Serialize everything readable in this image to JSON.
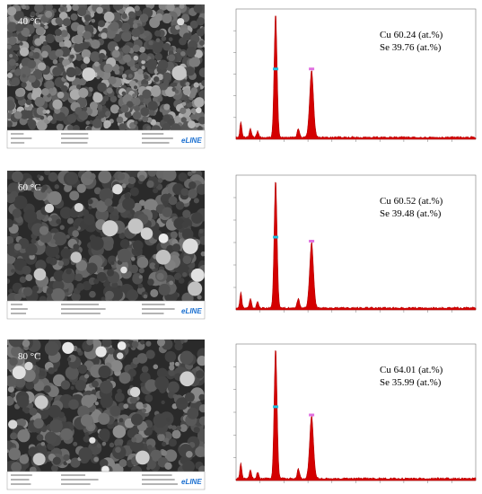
{
  "panels": [
    {
      "label": "40 °C",
      "cu": "Cu 60.24 (at.%)",
      "se": "Se 39.76 (at.%)",
      "logo": "eLINE"
    },
    {
      "label": "60 °C",
      "cu": "Cu 60.52 (at.%)",
      "se": "Se 39.48 (at.%)",
      "logo": "eLINE"
    },
    {
      "label": "80 °C",
      "cu": "Cu 64.01 (at.%)",
      "se": "Se 35.99 (at.%)",
      "logo": "eLINE"
    }
  ]
}
